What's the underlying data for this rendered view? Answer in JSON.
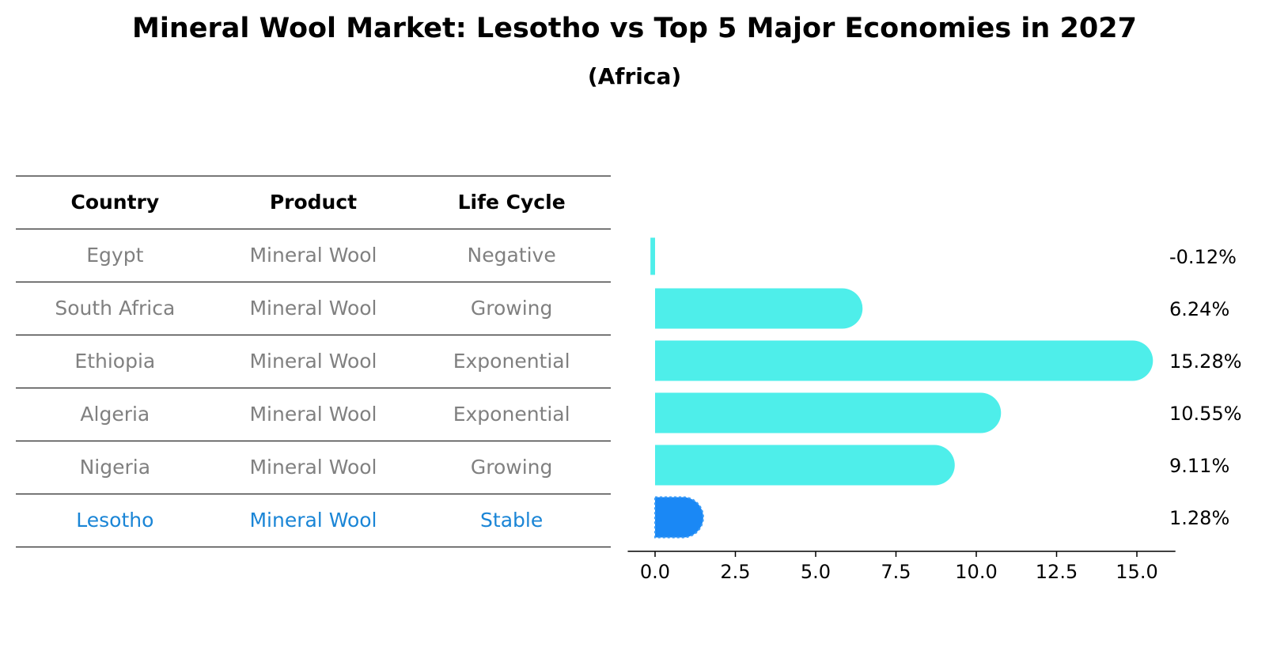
{
  "title": "Mineral Wool Market: Lesotho vs Top 5 Major Economies in 2027",
  "subtitle": "(Africa)",
  "table": {
    "headers": [
      "Country",
      "Product",
      "Life Cycle"
    ],
    "rows": [
      [
        "Egypt",
        "Mineral Wool",
        "Negative"
      ],
      [
        "South Africa",
        "Mineral Wool",
        "Growing"
      ],
      [
        "Ethiopia",
        "Mineral Wool",
        "Exponential"
      ],
      [
        "Algeria",
        "Mineral Wool",
        "Exponential"
      ],
      [
        "Nigeria",
        "Mineral Wool",
        "Growing"
      ],
      [
        "Lesotho",
        "Mineral Wool",
        "Stable"
      ]
    ],
    "highlight_row": 5
  },
  "chart_data": {
    "type": "bar",
    "orientation": "horizontal",
    "categories": [
      "Egypt",
      "South Africa",
      "Ethiopia",
      "Algeria",
      "Nigeria",
      "Lesotho"
    ],
    "values": [
      -0.12,
      6.24,
      15.28,
      10.55,
      9.11,
      1.28
    ],
    "value_labels": [
      "-0.12%",
      "6.24%",
      "15.28%",
      "10.55%",
      "9.11%",
      "1.28%"
    ],
    "xlim": [
      -0.9,
      16.2
    ],
    "xticks": [
      0.0,
      2.5,
      5.0,
      7.5,
      10.0,
      12.5,
      15.0
    ],
    "xtick_labels": [
      "0.0",
      "2.5",
      "5.0",
      "7.5",
      "10.0",
      "12.5",
      "15.0"
    ],
    "grid": false,
    "colors": {
      "default": "#4eeeea",
      "highlight": "#1a88f5"
    },
    "highlight_index": 5
  }
}
